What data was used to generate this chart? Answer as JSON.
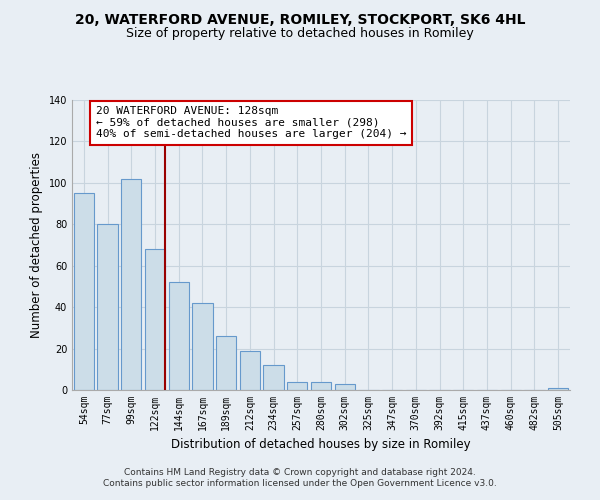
{
  "title": "20, WATERFORD AVENUE, ROMILEY, STOCKPORT, SK6 4HL",
  "subtitle": "Size of property relative to detached houses in Romiley",
  "xlabel": "Distribution of detached houses by size in Romiley",
  "ylabel": "Number of detached properties",
  "categories": [
    "54sqm",
    "77sqm",
    "99sqm",
    "122sqm",
    "144sqm",
    "167sqm",
    "189sqm",
    "212sqm",
    "234sqm",
    "257sqm",
    "280sqm",
    "302sqm",
    "325sqm",
    "347sqm",
    "370sqm",
    "392sqm",
    "415sqm",
    "437sqm",
    "460sqm",
    "482sqm",
    "505sqm"
  ],
  "values": [
    95,
    80,
    102,
    68,
    52,
    42,
    26,
    19,
    12,
    4,
    4,
    3,
    0,
    0,
    0,
    0,
    0,
    0,
    0,
    0,
    1
  ],
  "bar_color": "#ccdde8",
  "bar_edge_color": "#6699cc",
  "highlight_bar_index": 3,
  "highlight_line_color": "#990000",
  "annotation_box_text": "20 WATERFORD AVENUE: 128sqm\n← 59% of detached houses are smaller (298)\n40% of semi-detached houses are larger (204) →",
  "annotation_box_color": "#ffffff",
  "annotation_box_edge_color": "#cc0000",
  "ylim": [
    0,
    140
  ],
  "yticks": [
    0,
    20,
    40,
    60,
    80,
    100,
    120,
    140
  ],
  "footer_text": "Contains HM Land Registry data © Crown copyright and database right 2024.\nContains public sector information licensed under the Open Government Licence v3.0.",
  "background_color": "#e8eef4",
  "grid_color": "#c8d4de",
  "title_fontsize": 10,
  "subtitle_fontsize": 9,
  "axis_label_fontsize": 8.5,
  "tick_fontsize": 7,
  "footer_fontsize": 6.5,
  "annotation_fontsize": 8
}
